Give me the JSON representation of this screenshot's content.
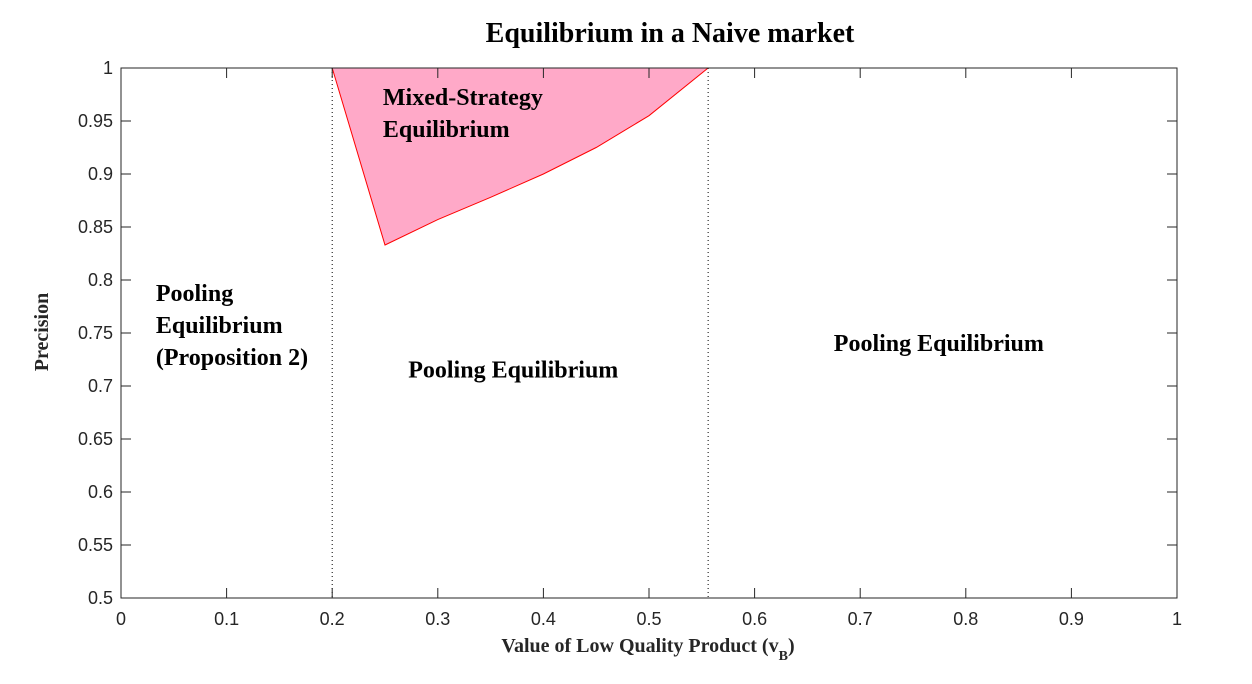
{
  "chart_data": {
    "type": "area",
    "title": "Equilibrium in a Naive market",
    "xlabel": "Value of Low Quality Product (v",
    "xlabel_subscript": "B",
    "xlabel_suffix": ")",
    "ylabel": "Precision",
    "xlim": [
      0,
      1
    ],
    "ylim": [
      0.5,
      1
    ],
    "xticks": [
      0,
      0.1,
      0.2,
      0.3,
      0.4,
      0.5,
      0.6,
      0.7,
      0.8,
      0.9,
      1
    ],
    "xtick_labels": [
      "0",
      "0.1",
      "0.2",
      "0.3",
      "0.4",
      "0.5",
      "0.6",
      "0.7",
      "0.8",
      "0.9",
      "1"
    ],
    "yticks": [
      0.5,
      0.55,
      0.6,
      0.65,
      0.7,
      0.75,
      0.8,
      0.85,
      0.9,
      0.95,
      1
    ],
    "ytick_labels": [
      "0.5",
      "0.55",
      "0.6",
      "0.65",
      "0.7",
      "0.75",
      "0.8",
      "0.85",
      "0.9",
      "0.95",
      "1"
    ],
    "grid": false,
    "vertical_lines": [
      {
        "x": 0.2,
        "style": "dotted",
        "color": "#000000"
      },
      {
        "x": 0.556,
        "style": "dotted",
        "color": "#000000"
      }
    ],
    "region": {
      "name": "Mixed-Strategy Equilibrium",
      "fill": "#ffa9c8",
      "stroke": "#ff0000",
      "polygon": [
        [
          0.2,
          1.0
        ],
        [
          0.25,
          0.833
        ],
        [
          0.3,
          0.857
        ],
        [
          0.35,
          0.878
        ],
        [
          0.4,
          0.9
        ],
        [
          0.45,
          0.925
        ],
        [
          0.5,
          0.955
        ],
        [
          0.556,
          1.0
        ]
      ]
    },
    "annotations": [
      {
        "id": "pool-left",
        "lines": [
          "Pooling",
          "Equilibrium",
          "(Proposition 2)"
        ],
        "x": 0.033,
        "y": 0.78
      },
      {
        "id": "mixed",
        "lines": [
          "Mixed-Strategy",
          "Equilibrium"
        ],
        "x": 0.248,
        "y": 0.965
      },
      {
        "id": "pool-mid",
        "lines": [
          "Pooling Equilibrium"
        ],
        "x": 0.272,
        "y": 0.708
      },
      {
        "id": "pool-right",
        "lines": [
          "Pooling Equilibrium"
        ],
        "x": 0.675,
        "y": 0.733
      }
    ]
  }
}
